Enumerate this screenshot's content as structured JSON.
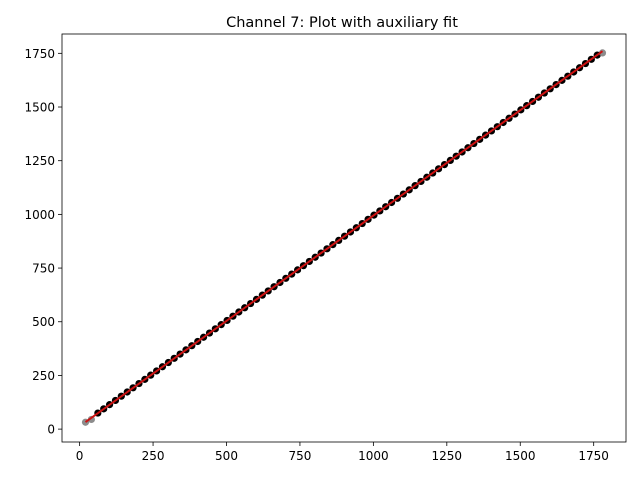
{
  "chart_data": {
    "type": "scatter",
    "title": "Channel 7: Plot with auxiliary fit",
    "xlabel": "",
    "ylabel": "",
    "xlim": [
      -60,
      1860
    ],
    "ylim": [
      -60,
      1840
    ],
    "xticks": [
      0,
      250,
      500,
      750,
      1000,
      1250,
      1500,
      1750
    ],
    "yticks": [
      0,
      250,
      500,
      750,
      1000,
      1250,
      1500,
      1750
    ],
    "xtick_labels": [
      "0",
      "250",
      "500",
      "750",
      "1000",
      "1250",
      "1500",
      "1750"
    ],
    "ytick_labels": [
      "0",
      "250",
      "500",
      "750",
      "1000",
      "1250",
      "1500",
      "1750"
    ],
    "grid": false,
    "series": [
      {
        "role": "points-gray",
        "color": "#808080",
        "x": [
          20,
          40,
          1780
        ],
        "y": [
          32,
          45,
          1752
        ]
      },
      {
        "role": "points-black",
        "color": "#000000",
        "x_start": 62,
        "x_end": 1762,
        "count": 86,
        "fit": {
          "slope": 0.9805,
          "intercept": 14
        }
      },
      {
        "role": "fit-line",
        "color": "#cc1111",
        "x": [
          20,
          1780
        ],
        "y": [
          33,
          1760
        ]
      }
    ]
  }
}
